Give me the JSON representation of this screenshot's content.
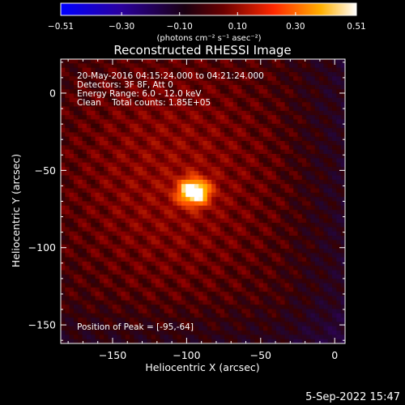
{
  "chart_data": {
    "type": "heatmap",
    "title": "Reconstructed RHESSI Image",
    "xlabel": "Heliocentric X (arcsec)",
    "ylabel": "Heliocentric Y (arcsec)",
    "xlim": [
      -185,
      7
    ],
    "ylim": [
      -162,
      22
    ],
    "x_ticks": [
      -150,
      -100,
      -50,
      0
    ],
    "y_ticks": [
      0,
      -50,
      -100,
      -150
    ],
    "x_tick_labels": [
      "−150",
      "−100",
      "−50",
      "0"
    ],
    "y_tick_labels": [
      "0",
      "−50",
      "−100",
      "−150"
    ],
    "colorbar": {
      "min": -0.51,
      "max": 0.51,
      "ticks": [
        -0.51,
        -0.3,
        -0.1,
        0.1,
        0.3,
        0.51
      ],
      "tick_labels": [
        "−0.51",
        "−0.30",
        "−0.10",
        "0.10",
        "0.30",
        "0.51"
      ],
      "unit_label": "(photons cm⁻² s⁻¹ asec⁻²)",
      "colormap": [
        "#0000ff",
        "#3c0070",
        "#000000",
        "#8a0000",
        "#ff3c00",
        "#ffb000",
        "#ffffff"
      ]
    },
    "annotations": [
      "20-May-2016 04:15:24.000 to 04:21:24.000",
      "Detectors: 3F 8F, Att 0",
      "Energy Range: 6.0 - 12.0 keV",
      "Clean    Total counts: 1.85E+05"
    ],
    "peak_label": "Position of Peak = [-95,-64]",
    "peak": {
      "x": -95,
      "y": -64,
      "value": 0.51
    }
  },
  "footer": {
    "date": "5-Sep-2022 15:47"
  }
}
